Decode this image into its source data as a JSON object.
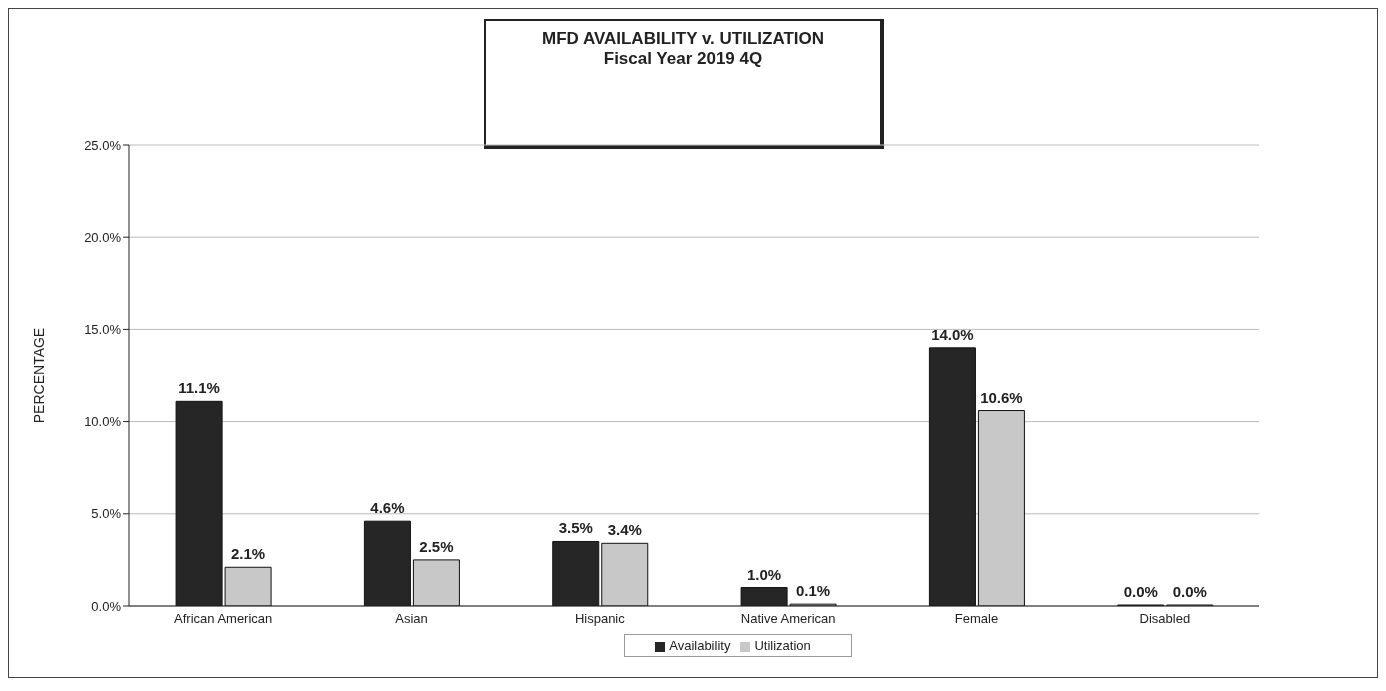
{
  "chart_data": {
    "type": "bar",
    "title": "MFD AVAILABILITY v. UTILIZATION",
    "subtitle": "Fiscal Year 2019 4Q",
    "ylabel": "PERCENTAGE",
    "categories": [
      "African American",
      "Asian",
      "Hispanic",
      "Native American",
      "Female",
      "Disabled"
    ],
    "series": [
      {
        "name": "Availability",
        "color": "#262626",
        "values": [
          11.1,
          4.6,
          3.5,
          1.0,
          14.0,
          0.0
        ],
        "value_labels": [
          "11.1%",
          "4.6%",
          "3.5%",
          "1.0%",
          "14.0%",
          "0.0%"
        ]
      },
      {
        "name": "Utilization",
        "color": "#c8c8c8",
        "values": [
          2.1,
          2.5,
          3.4,
          0.1,
          10.6,
          0.0
        ],
        "value_labels": [
          "2.1%",
          "2.5%",
          "3.4%",
          "0.1%",
          "10.6%",
          "0.0%"
        ]
      }
    ],
    "ylim": [
      0,
      25
    ],
    "yticks": [
      {
        "value": 0,
        "label": "0.0%"
      },
      {
        "value": 5,
        "label": "5.0%"
      },
      {
        "value": 10,
        "label": "10.0%"
      },
      {
        "value": 15,
        "label": "15.0%"
      },
      {
        "value": 20,
        "label": "20.0%"
      },
      {
        "value": 25,
        "label": "25.0%"
      }
    ],
    "grid": "y",
    "legend": "bottom"
  }
}
